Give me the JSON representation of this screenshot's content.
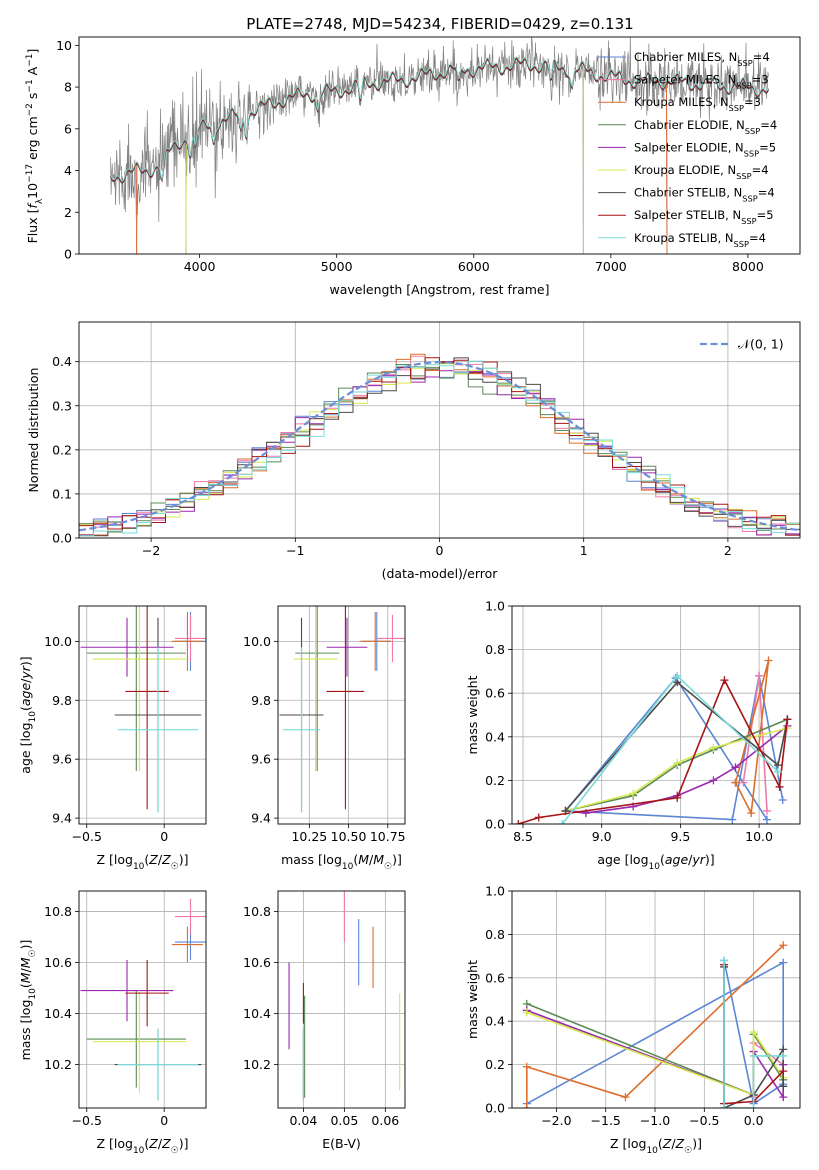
{
  "figure_title": "PLATE=2748, MJD=54234, FIBERID=0429, z=0.131",
  "colors": {
    "Chabrier MILES": "#5b86d4",
    "Salpeter MILES": "#ef79a8",
    "Kroupa MILES": "#dd6e2c",
    "Chabrier ELODIE": "#5c8a57",
    "Salpeter ELODIE": "#9b27b0",
    "Kroupa ELODIE": "#d6e94f",
    "Chabrier STELIB": "#4b4b4b",
    "Salpeter STELIB": "#a61417",
    "Kroupa STELIB": "#78dbd9",
    "data": "#808080",
    "normal": "#6b8fd9",
    "grid": "#b0b0b0"
  },
  "chart_data": [
    {
      "id": "spectrum",
      "type": "line",
      "title": "PLATE=2748, MJD=54234, FIBERID=0429, z=0.131",
      "xlabel": "wavelength [Angstrom, rest frame]",
      "ylabel": "Flux [f_λ 10^-17 erg cm^-2 s^-1 A^-1]",
      "xlim": [
        3120,
        8380
      ],
      "ylim": [
        0,
        10.4
      ],
      "xticks": [
        4000,
        5000,
        6000,
        7000,
        8000
      ],
      "yticks": [
        0,
        2,
        4,
        6,
        8,
        10
      ],
      "grid": false,
      "legend_position": "top-right",
      "continuum": {
        "x": [
          3350,
          3500,
          3600,
          3700,
          3800,
          3900,
          4000,
          4200,
          4400,
          4600,
          4800,
          5000,
          5200,
          5400,
          5600,
          5800,
          6000,
          6200,
          6400,
          6600,
          6800,
          7000,
          7200,
          7400,
          7600,
          7800,
          8000,
          8150
        ],
        "y": [
          3.6,
          4.0,
          3.9,
          4.3,
          5.0,
          5.6,
          6.0,
          6.5,
          6.9,
          7.4,
          7.7,
          7.8,
          8.2,
          8.3,
          8.5,
          8.8,
          8.9,
          9.0,
          9.1,
          9.0,
          8.8,
          8.5,
          8.3,
          8.3,
          8.2,
          8.1,
          8.0,
          7.9
        ]
      },
      "series": [
        {
          "name": "Chabrier MILES, N_SSP=4",
          "label_main": "Chabrier MILES, N",
          "label_sub": "SSP",
          "label_end": "=4",
          "color_key": "Chabrier MILES"
        },
        {
          "name": "Salpeter MILES, N_SSP=3",
          "label_main": "Salpeter MILES, N",
          "label_sub": "SSP",
          "label_end": "=3",
          "color_key": "Salpeter MILES"
        },
        {
          "name": "Kroupa MILES, N_SSP=3",
          "label_main": "Kroupa MILES, N",
          "label_sub": "SSP",
          "label_end": "=3",
          "color_key": "Kroupa MILES"
        },
        {
          "name": "Chabrier ELODIE, N_SSP=4",
          "label_main": "Chabrier ELODIE, N",
          "label_sub": "SSP",
          "label_end": "=4",
          "color_key": "Chabrier ELODIE"
        },
        {
          "name": "Salpeter ELODIE, N_SSP=5",
          "label_main": "Salpeter ELODIE, N",
          "label_sub": "SSP",
          "label_end": "=5",
          "color_key": "Salpeter ELODIE"
        },
        {
          "name": "Kroupa ELODIE, N_SSP=4",
          "label_main": "Kroupa ELODIE, N",
          "label_sub": "SSP",
          "label_end": "=4",
          "color_key": "Kroupa ELODIE"
        },
        {
          "name": "Chabrier STELIB, N_SSP=4",
          "label_main": "Chabrier STELIB, N",
          "label_sub": "SSP",
          "label_end": "=4",
          "color_key": "Chabrier STELIB"
        },
        {
          "name": "Salpeter STELIB, N_SSP=5",
          "label_main": "Salpeter STELIB, N",
          "label_sub": "SSP",
          "label_end": "=5",
          "color_key": "Salpeter STELIB"
        },
        {
          "name": "Kroupa STELIB, N_SSP=4",
          "label_main": "Kroupa STELIB, N",
          "label_sub": "SSP",
          "label_end": "=4",
          "color_key": "Kroupa STELIB"
        }
      ]
    },
    {
      "id": "residuals",
      "type": "line",
      "xlabel": "(data-model)/error",
      "ylabel": "Normed distribution",
      "xlim": [
        -2.5,
        2.5
      ],
      "ylim": [
        0,
        0.49
      ],
      "xticks": [
        -2,
        -1,
        0,
        1,
        2
      ],
      "yticks": [
        0.0,
        0.1,
        0.2,
        0.3,
        0.4
      ],
      "grid": true,
      "legend_position": "top-right",
      "reference_curve": {
        "name": "N(0,1)",
        "mean": 0,
        "sigma": 1,
        "style": "dashed"
      },
      "bin_width": 0.1
    },
    {
      "id": "age_vs_Z",
      "type": "scatter",
      "xlabel": "Z [log10(Z/Z☉)]",
      "ylabel": "age [log10(age/yr)]",
      "xlim": [
        -0.55,
        0.27
      ],
      "ylim": [
        9.38,
        10.12
      ],
      "xticks": [
        -0.5,
        0.0
      ],
      "yticks": [
        9.4,
        9.6,
        9.8,
        10.0
      ],
      "grid": true,
      "points": [
        {
          "series": "Chabrier MILES",
          "x": 0.17,
          "y": 10.0,
          "xerr": 0.1,
          "yerr": 0.1
        },
        {
          "series": "Salpeter MILES",
          "x": 0.17,
          "y": 10.01,
          "xerr": 0.1,
          "yerr": 0.08
        },
        {
          "series": "Kroupa MILES",
          "x": 0.15,
          "y": 10.0,
          "xerr": 0.1,
          "yerr": 0.1
        },
        {
          "series": "Chabrier ELODIE",
          "x": -0.18,
          "y": 9.96,
          "xerr": 0.32,
          "yerr": 0.4
        },
        {
          "series": "Salpeter ELODIE",
          "x": -0.24,
          "y": 9.98,
          "xerr": 0.3,
          "yerr": 0.1
        },
        {
          "series": "Kroupa ELODIE",
          "x": -0.16,
          "y": 9.94,
          "xerr": 0.3,
          "yerr": 0.38
        },
        {
          "series": "Chabrier STELIB",
          "x": -0.04,
          "y": 9.75,
          "xerr": 0.28,
          "yerr": 0.33
        },
        {
          "series": "Salpeter STELIB",
          "x": -0.11,
          "y": 9.83,
          "xerr": 0.14,
          "yerr": 0.4
        },
        {
          "series": "Kroupa STELIB",
          "x": -0.04,
          "y": 9.7,
          "xerr": 0.26,
          "yerr": 0.28
        }
      ]
    },
    {
      "id": "age_vs_mass",
      "type": "scatter",
      "xlabel": "mass [log10(M/M☉)]",
      "ylabel": "",
      "xlim": [
        10.05,
        10.86
      ],
      "ylim": [
        9.38,
        10.12
      ],
      "xticks": [
        10.25,
        10.5,
        10.75
      ],
      "yticks": [
        9.4,
        9.6,
        9.8,
        10.0
      ],
      "grid": true,
      "points": [
        {
          "series": "Chabrier MILES",
          "x": 10.68,
          "y": 10.0,
          "xerr": 0.09,
          "yerr": 0.1
        },
        {
          "series": "Salpeter MILES",
          "x": 10.78,
          "y": 10.01,
          "xerr": 0.1,
          "yerr": 0.08
        },
        {
          "series": "Kroupa MILES",
          "x": 10.67,
          "y": 10.0,
          "xerr": 0.1,
          "yerr": 0.1
        },
        {
          "series": "Chabrier ELODIE",
          "x": 10.3,
          "y": 9.96,
          "xerr": 0.14,
          "yerr": 0.4
        },
        {
          "series": "Salpeter ELODIE",
          "x": 10.49,
          "y": 9.98,
          "xerr": 0.13,
          "yerr": 0.1
        },
        {
          "series": "Kroupa ELODIE",
          "x": 10.29,
          "y": 9.94,
          "xerr": 0.14,
          "yerr": 0.38
        },
        {
          "series": "Chabrier STELIB",
          "x": 10.2,
          "y": 9.75,
          "xerr": 0.14,
          "yerr": 0.33
        },
        {
          "series": "Salpeter STELIB",
          "x": 10.48,
          "y": 9.83,
          "xerr": 0.12,
          "yerr": 0.4
        },
        {
          "series": "Kroupa STELIB",
          "x": 10.2,
          "y": 9.7,
          "xerr": 0.12,
          "yerr": 0.28
        }
      ]
    },
    {
      "id": "weight_vs_age",
      "type": "line",
      "xlabel": "age [log10(age/yr)]",
      "ylabel": "mass weight",
      "xlim": [
        8.43,
        10.26
      ],
      "ylim": [
        0,
        1.0
      ],
      "xticks": [
        8.5,
        9.0,
        9.5,
        10.0
      ],
      "yticks": [
        0.0,
        0.2,
        0.4,
        0.6,
        0.8,
        1.0
      ],
      "grid": true,
      "series": [
        {
          "color_key": "Chabrier MILES",
          "x": [
            10.15,
            10.0,
            9.83,
            8.77,
            9.47,
            10.05
          ],
          "y": [
            0.11,
            0.68,
            0.02,
            0.06,
            0.67,
            0.02
          ]
        },
        {
          "color_key": "Salpeter MILES",
          "x": [
            10.05,
            10.0,
            9.9
          ],
          "y": [
            0.06,
            0.68,
            0.19
          ]
        },
        {
          "color_key": "Kroupa MILES",
          "x": [
            9.85,
            10.06,
            9.95,
            9.85
          ],
          "y": [
            0.19,
            0.75,
            0.05,
            0.19
          ]
        },
        {
          "color_key": "Chabrier ELODIE",
          "x": [
            8.77,
            9.2,
            9.48,
            9.71,
            10.18
          ],
          "y": [
            0.06,
            0.13,
            0.27,
            0.34,
            0.48
          ]
        },
        {
          "color_key": "Salpeter ELODIE",
          "x": [
            8.77,
            8.9,
            9.2,
            9.48,
            9.71,
            9.85,
            10.18
          ],
          "y": [
            0.06,
            0.05,
            0.08,
            0.13,
            0.2,
            0.26,
            0.45
          ]
        },
        {
          "color_key": "Kroupa ELODIE",
          "x": [
            8.77,
            9.2,
            9.48,
            9.71,
            10.18
          ],
          "y": [
            0.06,
            0.14,
            0.28,
            0.35,
            0.44
          ]
        },
        {
          "color_key": "Chabrier STELIB",
          "x": [
            8.77,
            9.48,
            10.12,
            10.18
          ],
          "y": [
            0.06,
            0.65,
            0.27,
            0.48
          ]
        },
        {
          "color_key": "Salpeter STELIB",
          "x": [
            8.47,
            8.6,
            9.48,
            9.78,
            10.13,
            10.18
          ],
          "y": [
            0.0,
            0.03,
            0.12,
            0.66,
            0.17,
            0.48
          ]
        },
        {
          "color_key": "Kroupa STELIB",
          "x": [
            8.75,
            9.48,
            10.12
          ],
          "y": [
            0.0,
            0.68,
            0.24
          ]
        }
      ]
    },
    {
      "id": "mass_vs_Z",
      "type": "scatter",
      "xlabel": "Z [log10(Z/Z☉)]",
      "ylabel": "mass [log10(M/M☉)]",
      "xlim": [
        -0.55,
        0.27
      ],
      "ylim": [
        10.03,
        10.88
      ],
      "xticks": [
        -0.5,
        0.0
      ],
      "yticks": [
        10.2,
        10.4,
        10.6,
        10.8
      ],
      "grid": true,
      "points": [
        {
          "series": "Chabrier MILES",
          "x": 0.17,
          "y": 10.68,
          "xerr": 0.1,
          "yerr": 0.07
        },
        {
          "series": "Salpeter MILES",
          "x": 0.17,
          "y": 10.78,
          "xerr": 0.1,
          "yerr": 0.07
        },
        {
          "series": "Kroupa MILES",
          "x": 0.15,
          "y": 10.67,
          "xerr": 0.1,
          "yerr": 0.07
        },
        {
          "series": "Chabrier ELODIE",
          "x": -0.18,
          "y": 10.3,
          "xerr": 0.32,
          "yerr": 0.19
        },
        {
          "series": "Salpeter ELODIE",
          "x": -0.24,
          "y": 10.49,
          "xerr": 0.3,
          "yerr": 0.12
        },
        {
          "series": "Kroupa ELODIE",
          "x": -0.16,
          "y": 10.29,
          "xerr": 0.3,
          "yerr": 0.2
        },
        {
          "series": "Chabrier STELIB",
          "x": -0.04,
          "y": 10.2,
          "xerr": 0.28,
          "yerr": 0.14
        },
        {
          "series": "Salpeter STELIB",
          "x": -0.11,
          "y": 10.48,
          "xerr": 0.14,
          "yerr": 0.13
        },
        {
          "series": "Kroupa STELIB",
          "x": -0.04,
          "y": 10.2,
          "xerr": 0.26,
          "yerr": 0.14
        }
      ]
    },
    {
      "id": "mass_vs_ebv",
      "type": "scatter",
      "xlabel": "E(B-V)",
      "ylabel": "",
      "xlim": [
        0.0338,
        0.0648
      ],
      "ylim": [
        10.03,
        10.88
      ],
      "xticks": [
        0.04,
        0.05,
        0.06
      ],
      "yticks": [
        10.2,
        10.4,
        10.6,
        10.8
      ],
      "grid": true,
      "points": [
        {
          "series": "Chabrier MILES",
          "x": 0.0535,
          "y": 10.64,
          "yerr": 0.13
        },
        {
          "series": "Salpeter MILES",
          "x": 0.05,
          "y": 10.78,
          "yerr": 0.1
        },
        {
          "series": "Kroupa MILES",
          "x": 0.057,
          "y": 10.62,
          "yerr": 0.12
        },
        {
          "series": "Chabrier ELODIE",
          "x": 0.0403,
          "y": 10.27,
          "yerr": 0.2
        },
        {
          "series": "Salpeter ELODIE",
          "x": 0.0365,
          "y": 10.43,
          "yerr": 0.17
        },
        {
          "series": "Kroupa ELODIE",
          "x": 0.0635,
          "y": 10.29,
          "yerr": 0.19
        },
        {
          "series": "Chabrier STELIB",
          "x": 0.04,
          "y": 10.2,
          "yerr": 0.14
        },
        {
          "series": "Salpeter STELIB",
          "x": 0.04,
          "y": 10.44,
          "yerr": 0.08
        },
        {
          "series": "Kroupa STELIB",
          "x": 0.04,
          "y": 10.2,
          "yerr": 0.14
        }
      ]
    },
    {
      "id": "weight_vs_Z",
      "type": "line",
      "xlabel": "Z [log10(Z/Z☉)]",
      "ylabel": "mass weight",
      "xlim": [
        -2.45,
        0.47
      ],
      "ylim": [
        0,
        1.0
      ],
      "xticks": [
        -2.0,
        -1.5,
        -1.0,
        -0.5,
        0.0
      ],
      "yticks": [
        0.0,
        0.2,
        0.4,
        0.6,
        0.8,
        1.0
      ],
      "grid": true,
      "series": [
        {
          "color_key": "Chabrier MILES",
          "x": [
            -2.3,
            0.3,
            0.3,
            0.0,
            -0.3
          ],
          "y": [
            0.02,
            0.67,
            0.11,
            0.02,
            0.68
          ]
        },
        {
          "color_key": "Salpeter MILES",
          "x": [
            0.0,
            0.0,
            0.3
          ],
          "y": [
            0.05,
            0.3,
            0.2
          ]
        },
        {
          "color_key": "Kroupa MILES",
          "x": [
            -2.3,
            -2.3,
            -1.3,
            0.3
          ],
          "y": [
            0.0,
            0.19,
            0.05,
            0.75
          ]
        },
        {
          "color_key": "Chabrier ELODIE",
          "x": [
            -2.3,
            0.0,
            0.0,
            0.3
          ],
          "y": [
            0.48,
            0.06,
            0.34,
            0.13
          ]
        },
        {
          "color_key": "Salpeter ELODIE",
          "x": [
            -2.3,
            0.0,
            0.0,
            0.3,
            0.3
          ],
          "y": [
            0.45,
            0.06,
            0.26,
            0.05,
            0.2
          ]
        },
        {
          "color_key": "Kroupa ELODIE",
          "x": [
            -2.3,
            0.0,
            0.0,
            0.3
          ],
          "y": [
            0.44,
            0.06,
            0.35,
            0.14
          ]
        },
        {
          "color_key": "Chabrier STELIB",
          "x": [
            -0.3,
            -0.3,
            0.0,
            0.3,
            0.3
          ],
          "y": [
            0.65,
            0.0,
            0.06,
            0.27,
            0.1
          ]
        },
        {
          "color_key": "Salpeter STELIB",
          "x": [
            -0.3,
            -0.3,
            0.0,
            0.3
          ],
          "y": [
            0.66,
            0.02,
            0.03,
            0.17
          ]
        },
        {
          "color_key": "Kroupa STELIB",
          "x": [
            -0.3,
            -0.3,
            0.0,
            0.0,
            0.3
          ],
          "y": [
            0.68,
            0.0,
            0.0,
            0.24,
            0.24
          ]
        }
      ]
    }
  ]
}
